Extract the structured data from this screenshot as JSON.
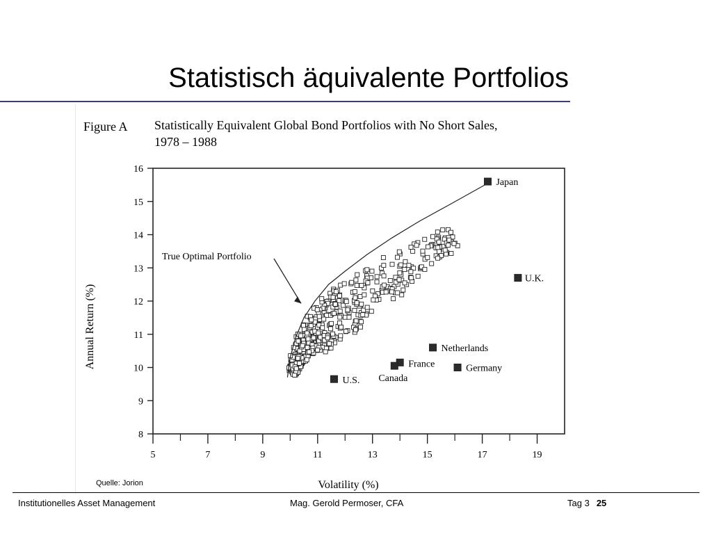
{
  "slide": {
    "title": "Statistisch äquivalente Portfolios",
    "source_note": "Quelle: Jorion",
    "footer_left": "Institutionelles Asset Management",
    "footer_center": "Mag. Gerold Permoser, CFA",
    "footer_day": "Tag 3",
    "page_number": "25"
  },
  "colors": {
    "title_rule": "#3a3a8c",
    "markers": "#2b2b2b"
  },
  "chart_data": {
    "type": "scatter",
    "figure_label": "Figure A",
    "title": "Statistically Equivalent Global Bond Portfolios with No Short Sales,",
    "subtitle": "1978 – 1988",
    "xlabel": "Volatility (%)",
    "ylabel": "Annual Return (%)",
    "xlim": [
      5,
      20
    ],
    "ylim": [
      8,
      16
    ],
    "x_ticks": [
      5,
      7,
      9,
      11,
      13,
      15,
      17,
      19
    ],
    "x_tick_labels": [
      "5",
      "7",
      "9",
      "11",
      "13",
      "15",
      "17",
      "19"
    ],
    "y_ticks": [
      8,
      9,
      10,
      11,
      12,
      13,
      14,
      15,
      16
    ],
    "y_tick_labels": [
      "8",
      "9",
      "10",
      "11",
      "12",
      "13",
      "14",
      "15",
      "16"
    ],
    "grid": false,
    "annotation": {
      "text": "True Optimal Portfolio",
      "target": [
        10.5,
        11.3
      ]
    },
    "frontier": {
      "x": [
        9.9,
        10.0,
        10.2,
        10.5,
        10.9,
        11.4,
        12.0,
        12.8,
        13.7,
        14.7,
        15.8,
        17.1
      ],
      "y": [
        9.7,
        10.3,
        10.9,
        11.5,
        12.0,
        12.5,
        12.9,
        13.4,
        13.9,
        14.4,
        14.9,
        15.5
      ]
    },
    "countries": [
      {
        "name": "Japan",
        "x": 17.2,
        "y": 15.6
      },
      {
        "name": "U.K.",
        "x": 18.3,
        "y": 12.7
      },
      {
        "name": "Netherlands",
        "x": 15.2,
        "y": 10.6
      },
      {
        "name": "France",
        "x": 14.0,
        "y": 10.15
      },
      {
        "name": "Canada",
        "x": 13.8,
        "y": 10.05
      },
      {
        "name": "Germany",
        "x": 16.1,
        "y": 10.0
      },
      {
        "name": "U.S.",
        "x": 11.6,
        "y": 9.65
      }
    ],
    "equivalent_portfolios_spread": {
      "curve_x": [
        10.0,
        10.2,
        10.5,
        10.9,
        11.4,
        12.0,
        12.8,
        13.7,
        14.7,
        15.8
      ],
      "curve_y": [
        10.0,
        10.8,
        11.3,
        11.8,
        12.2,
        12.6,
        13.0,
        13.4,
        13.8,
        14.2
      ],
      "max_drop": [
        0.2,
        0.5,
        0.8,
        1.0,
        1.1,
        1.1,
        1.0,
        0.9,
        0.7,
        0.5
      ]
    }
  }
}
